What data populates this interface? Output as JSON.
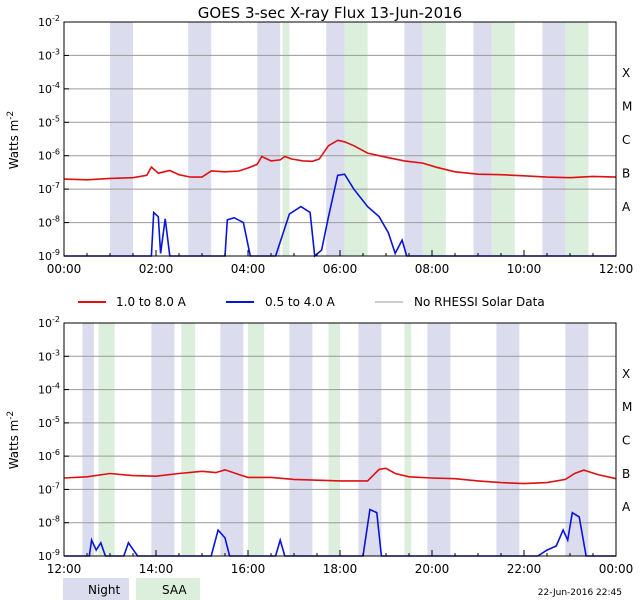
{
  "title": "GOES 3-sec X-ray Flux   13-Jun-2016",
  "ylabel": "Watts m",
  "ylabel_exp": "-2",
  "footer_date": "22-Jun-2016 22:45",
  "colors": {
    "long": "#e01010",
    "short": "#0a14d8",
    "norhessi": "#9a9a9a",
    "night": "#dcdcef",
    "saa": "#dcefdc"
  },
  "legend": [
    {
      "label": "1.0 to 8.0 A",
      "series": "long"
    },
    {
      "label": "0.5 to 4.0 A",
      "series": "short"
    },
    {
      "label": "No RHESSI Solar Data",
      "series": "norhessi"
    }
  ],
  "shade_legend": [
    {
      "label": "Night",
      "kind": "night"
    },
    {
      "label": "SAA",
      "kind": "saa"
    }
  ],
  "chart_data": [
    {
      "type": "line",
      "ylog": true,
      "ylim": [
        1e-09,
        0.01
      ],
      "xlim_hours": [
        0,
        12
      ],
      "xticks": [
        "00:00",
        "02:00",
        "04:00",
        "06:00",
        "08:00",
        "10:00",
        "12:00"
      ],
      "yticks": [
        {
          "base": "10",
          "exp": "-2"
        },
        {
          "base": "10",
          "exp": "-3"
        },
        {
          "base": "10",
          "exp": "-4"
        },
        {
          "base": "10",
          "exp": "-5"
        },
        {
          "base": "10",
          "exp": "-6"
        },
        {
          "base": "10",
          "exp": "-7"
        },
        {
          "base": "10",
          "exp": "-8"
        },
        {
          "base": "10",
          "exp": "-9"
        }
      ],
      "classes": [
        {
          "label": "X",
          "value": 0.0001
        },
        {
          "label": "M",
          "value": 1e-05
        },
        {
          "label": "C",
          "value": 1e-06
        },
        {
          "label": "B",
          "value": 1e-07
        },
        {
          "label": "A",
          "value": 1e-08
        }
      ],
      "night": [
        [
          1.0,
          1.5
        ],
        [
          2.7,
          3.2
        ],
        [
          4.2,
          4.7
        ],
        [
          5.7,
          6.1
        ],
        [
          7.4,
          7.8
        ],
        [
          8.9,
          9.3
        ],
        [
          10.4,
          10.9
        ]
      ],
      "saa": [
        [
          4.75,
          4.9
        ],
        [
          6.1,
          6.6
        ],
        [
          7.8,
          8.3
        ],
        [
          9.3,
          9.8
        ],
        [
          10.9,
          11.4
        ]
      ],
      "long": [
        [
          0.0,
          2e-07
        ],
        [
          0.5,
          1.9e-07
        ],
        [
          1.0,
          2.1e-07
        ],
        [
          1.5,
          2.2e-07
        ],
        [
          1.8,
          2.6e-07
        ],
        [
          1.9,
          4.6e-07
        ],
        [
          2.05,
          3e-07
        ],
        [
          2.3,
          3.6e-07
        ],
        [
          2.5,
          2.7e-07
        ],
        [
          2.75,
          2.3e-07
        ],
        [
          3.0,
          2.3e-07
        ],
        [
          3.2,
          3.5e-07
        ],
        [
          3.5,
          3.3e-07
        ],
        [
          3.8,
          3.5e-07
        ],
        [
          4.0,
          4.3e-07
        ],
        [
          4.2,
          5.5e-07
        ],
        [
          4.3,
          9.5e-07
        ],
        [
          4.5,
          7e-07
        ],
        [
          4.7,
          7.5e-07
        ],
        [
          4.8,
          9.5e-07
        ],
        [
          4.95,
          8e-07
        ],
        [
          5.2,
          7e-07
        ],
        [
          5.4,
          6.8e-07
        ],
        [
          5.55,
          8e-07
        ],
        [
          5.75,
          2e-06
        ],
        [
          5.95,
          2.9e-06
        ],
        [
          6.1,
          2.6e-06
        ],
        [
          6.3,
          2e-06
        ],
        [
          6.6,
          1.2e-06
        ],
        [
          7.0,
          9e-07
        ],
        [
          7.4,
          7e-07
        ],
        [
          7.8,
          6e-07
        ],
        [
          8.1,
          4.5e-07
        ],
        [
          8.5,
          3.3e-07
        ],
        [
          9.0,
          2.8e-07
        ],
        [
          9.5,
          2.7e-07
        ],
        [
          10.0,
          2.5e-07
        ],
        [
          10.5,
          2.3e-07
        ],
        [
          11.0,
          2.2e-07
        ],
        [
          11.5,
          2.4e-07
        ],
        [
          12.0,
          2.3e-07
        ]
      ],
      "short": [
        [
          0.0,
          1e-09
        ],
        [
          1.9,
          1e-09
        ],
        [
          1.95,
          2e-08
        ],
        [
          2.05,
          1.5e-08
        ],
        [
          2.1,
          1.2e-09
        ],
        [
          2.2,
          1.3e-08
        ],
        [
          2.3,
          1e-09
        ],
        [
          3.5,
          1e-09
        ],
        [
          3.55,
          1.2e-08
        ],
        [
          3.7,
          1.4e-08
        ],
        [
          3.9,
          1e-08
        ],
        [
          4.05,
          1e-09
        ],
        [
          4.6,
          1e-09
        ],
        [
          4.9,
          1.8e-08
        ],
        [
          5.15,
          3e-08
        ],
        [
          5.35,
          2e-08
        ],
        [
          5.45,
          1e-09
        ],
        [
          5.6,
          1.5e-09
        ],
        [
          5.75,
          1.5e-08
        ],
        [
          5.95,
          2.6e-07
        ],
        [
          6.1,
          2.8e-07
        ],
        [
          6.3,
          1e-07
        ],
        [
          6.6,
          3e-08
        ],
        [
          6.85,
          1.5e-08
        ],
        [
          7.05,
          5e-09
        ],
        [
          7.2,
          1.2e-09
        ],
        [
          7.35,
          3e-09
        ],
        [
          7.45,
          1e-09
        ],
        [
          12.0,
          1e-09
        ]
      ]
    },
    {
      "type": "line",
      "ylog": true,
      "ylim": [
        1e-09,
        0.01
      ],
      "xlim_hours": [
        12,
        24
      ],
      "xticks": [
        "12:00",
        "14:00",
        "16:00",
        "18:00",
        "20:00",
        "22:00",
        "00:00"
      ],
      "yticks": [
        {
          "base": "10",
          "exp": "-2"
        },
        {
          "base": "10",
          "exp": "-3"
        },
        {
          "base": "10",
          "exp": "-4"
        },
        {
          "base": "10",
          "exp": "-5"
        },
        {
          "base": "10",
          "exp": "-6"
        },
        {
          "base": "10",
          "exp": "-7"
        },
        {
          "base": "10",
          "exp": "-8"
        },
        {
          "base": "10",
          "exp": "-9"
        }
      ],
      "classes": [
        {
          "label": "X",
          "value": 0.0001
        },
        {
          "label": "M",
          "value": 1e-05
        },
        {
          "label": "C",
          "value": 1e-06
        },
        {
          "label": "B",
          "value": 1e-07
        },
        {
          "label": "A",
          "value": 1e-08
        }
      ],
      "night": [
        [
          12.4,
          12.65
        ],
        [
          13.9,
          14.4
        ],
        [
          15.4,
          15.9
        ],
        [
          16.9,
          17.4
        ],
        [
          18.4,
          18.9
        ],
        [
          19.9,
          20.4
        ],
        [
          21.4,
          21.9
        ],
        [
          22.9,
          23.4
        ]
      ],
      "saa": [
        [
          12.75,
          13.1
        ],
        [
          14.55,
          14.85
        ],
        [
          16.0,
          16.35
        ],
        [
          17.75,
          18.0
        ],
        [
          19.4,
          19.55
        ]
      ],
      "long": [
        [
          12.0,
          2.2e-07
        ],
        [
          12.5,
          2.4e-07
        ],
        [
          13.0,
          3e-07
        ],
        [
          13.5,
          2.6e-07
        ],
        [
          14.0,
          2.5e-07
        ],
        [
          14.5,
          3e-07
        ],
        [
          15.0,
          3.5e-07
        ],
        [
          15.3,
          3.2e-07
        ],
        [
          15.5,
          3.9e-07
        ],
        [
          15.8,
          2.8e-07
        ],
        [
          16.0,
          2.3e-07
        ],
        [
          16.5,
          2.3e-07
        ],
        [
          17.0,
          2e-07
        ],
        [
          17.5,
          1.9e-07
        ],
        [
          18.0,
          1.8e-07
        ],
        [
          18.6,
          1.8e-07
        ],
        [
          18.85,
          4e-07
        ],
        [
          19.0,
          4.3e-07
        ],
        [
          19.2,
          3e-07
        ],
        [
          19.5,
          2.4e-07
        ],
        [
          20.0,
          2.2e-07
        ],
        [
          20.5,
          2.1e-07
        ],
        [
          21.0,
          1.8e-07
        ],
        [
          21.5,
          1.6e-07
        ],
        [
          22.0,
          1.5e-07
        ],
        [
          22.5,
          1.6e-07
        ],
        [
          22.9,
          2e-07
        ],
        [
          23.1,
          3e-07
        ],
        [
          23.3,
          3.8e-07
        ],
        [
          23.6,
          2.8e-07
        ],
        [
          24.0,
          2.1e-07
        ]
      ],
      "short": [
        [
          12.0,
          1e-09
        ],
        [
          12.55,
          1e-09
        ],
        [
          12.6,
          3e-09
        ],
        [
          12.7,
          1.5e-09
        ],
        [
          12.8,
          2.5e-09
        ],
        [
          12.9,
          1e-09
        ],
        [
          13.3,
          1e-09
        ],
        [
          13.4,
          2.5e-09
        ],
        [
          13.6,
          1e-09
        ],
        [
          15.2,
          1e-09
        ],
        [
          15.35,
          6e-09
        ],
        [
          15.5,
          3.5e-09
        ],
        [
          15.6,
          1e-09
        ],
        [
          16.6,
          1e-09
        ],
        [
          16.7,
          3e-09
        ],
        [
          16.8,
          1e-09
        ],
        [
          18.5,
          1e-09
        ],
        [
          18.65,
          2.5e-08
        ],
        [
          18.8,
          2e-08
        ],
        [
          18.9,
          1e-09
        ],
        [
          22.3,
          1e-09
        ],
        [
          22.5,
          1.5e-09
        ],
        [
          22.7,
          2e-09
        ],
        [
          22.85,
          6e-09
        ],
        [
          22.95,
          3e-09
        ],
        [
          23.05,
          2e-08
        ],
        [
          23.2,
          1.5e-08
        ],
        [
          23.35,
          1e-09
        ],
        [
          24.0,
          1e-09
        ]
      ]
    }
  ]
}
